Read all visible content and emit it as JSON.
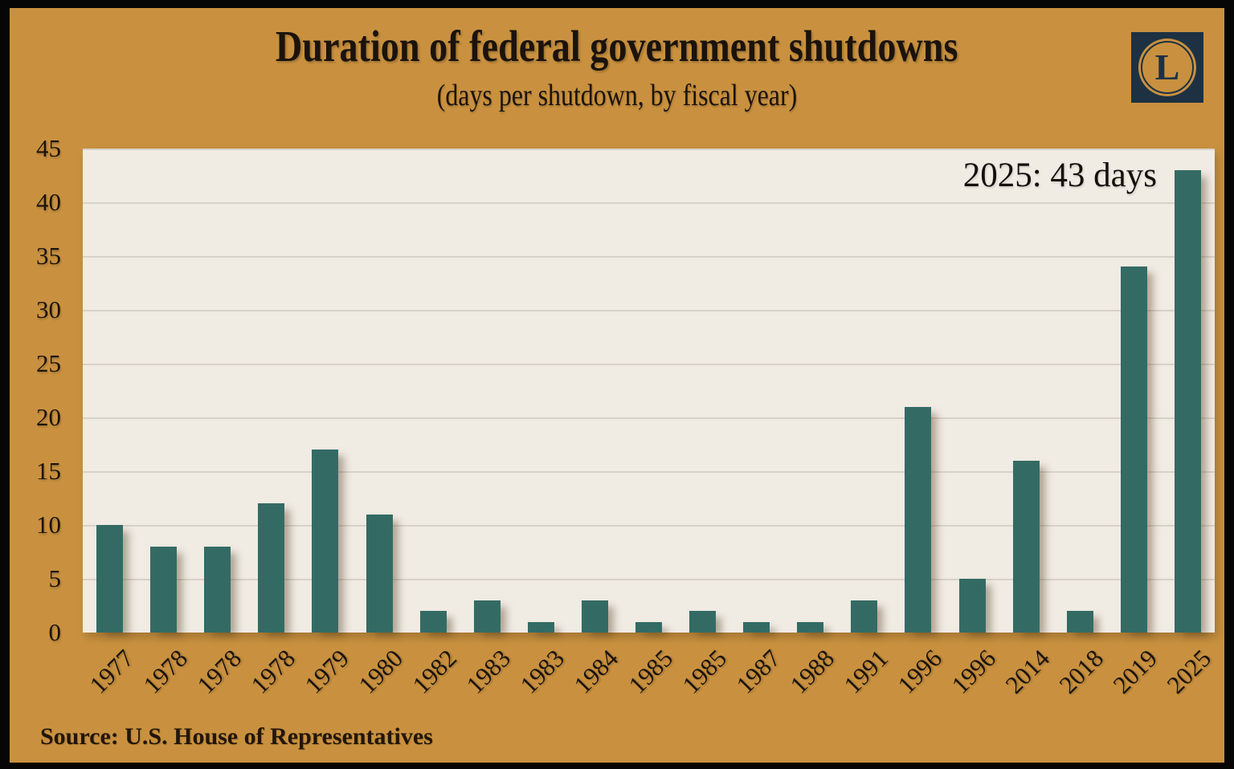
{
  "title": "Duration of federal government shutdowns",
  "subtitle": "(days per shutdown, by fiscal year)",
  "annotation": "2025: 43 days",
  "source": "Source: U.S. House of Representatives",
  "logo": {
    "letter": "L"
  },
  "colors": {
    "background": "#c9913f",
    "frame_border": "#060606",
    "plot_background": "#f0ebe3",
    "gridline": "#d8d1c7",
    "bar": "#336b64",
    "text": "#1b130c",
    "logo_navy": "#1d3143"
  },
  "chart_data": {
    "type": "bar",
    "title": "Duration of federal government shutdowns",
    "subtitle": "(days per shutdown, by fiscal year)",
    "categories": [
      "1977",
      "1978",
      "1978",
      "1978",
      "1979",
      "1980",
      "1982",
      "1983",
      "1983",
      "1984",
      "1985",
      "1985",
      "1987",
      "1988",
      "1991",
      "1996",
      "1996",
      "2014",
      "2018",
      "2019",
      "2025"
    ],
    "values": [
      10,
      8,
      8,
      12,
      17,
      11,
      2,
      3,
      1,
      3,
      1,
      2,
      1,
      1,
      3,
      21,
      5,
      16,
      2,
      34,
      43
    ],
    "xlabel": "",
    "ylabel": "",
    "ylim": [
      0,
      45
    ],
    "yticks": [
      0,
      5,
      10,
      15,
      20,
      25,
      30,
      35,
      40,
      45
    ],
    "grid": "horizontal",
    "legend": "none",
    "annotation": "2025: 43 days"
  }
}
